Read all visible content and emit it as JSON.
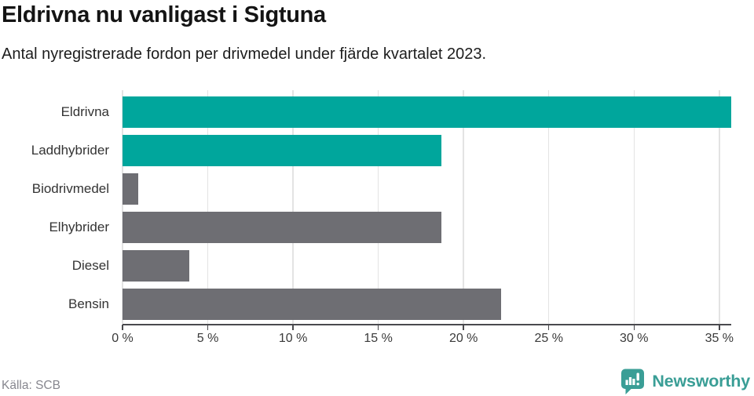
{
  "header": {
    "title": "Eldrivna nu vanligast i Sigtuna",
    "subtitle": "Antal nyregistrerade fordon per drivmedel under fjärde kvartalet 2023."
  },
  "chart_data": {
    "type": "bar",
    "orientation": "horizontal",
    "title": "Eldrivna nu vanligast i Sigtuna",
    "subtitle": "Antal nyregistrerade fordon per drivmedel under fjärde kvartalet 2023.",
    "categories": [
      "Eldrivna",
      "Laddhybrider",
      "Biodrivmedel",
      "Elhybrider",
      "Diesel",
      "Bensin"
    ],
    "values": [
      35.7,
      18.7,
      0.9,
      18.7,
      3.9,
      22.2
    ],
    "unit": "%",
    "bar_colors": [
      "#00a69c",
      "#00a69c",
      "#6e6e73",
      "#6e6e73",
      "#6e6e73",
      "#6e6e73"
    ],
    "xlim": [
      0,
      35.7
    ],
    "x_ticks": [
      0,
      5,
      10,
      15,
      20,
      25,
      30,
      35
    ],
    "x_tick_labels": [
      "0 %",
      "5 %",
      "10 %",
      "15 %",
      "20 %",
      "25 %",
      "30 %",
      "35 %"
    ],
    "grid": "vertical",
    "legend": "none",
    "xlabel": "",
    "ylabel": ""
  },
  "footer": {
    "source": "Källa: SCB",
    "brand": "Newsworthy"
  },
  "colors": {
    "accent_teal": "#00a69c",
    "neutral_gray": "#6e6e73",
    "brand_teal": "#3a9e96",
    "gridline": "#e3e3e3",
    "axis": "#4a4a4e",
    "source_text": "#87878f"
  }
}
